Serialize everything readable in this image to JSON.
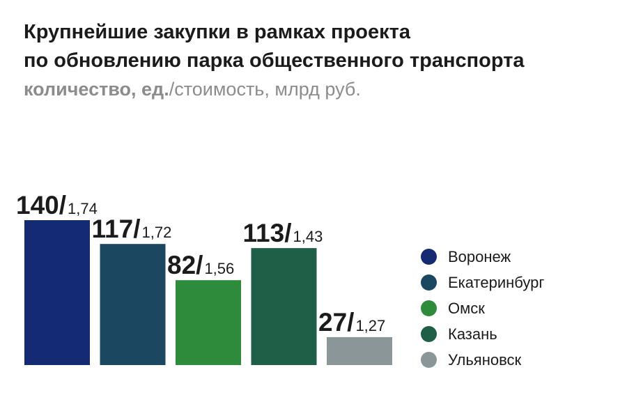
{
  "title_line1": "Крупнейшие закупки в рамках проекта",
  "title_line2": "по обновлению парка общественного транспорта",
  "subtitle_strong": "количество, ед.",
  "subtitle_rest": "/стоимость, млрд руб.",
  "chart_data": {
    "type": "bar",
    "categories": [
      "Воронеж",
      "Екатеринбург",
      "Омск",
      "Казань",
      "Ульяновск"
    ],
    "series": [
      {
        "name": "количество, ед.",
        "values": [
          140,
          117,
          82,
          113,
          27
        ]
      },
      {
        "name": "стоимость, млрд руб.",
        "values": [
          1.74,
          1.72,
          1.56,
          1.43,
          1.27
        ]
      }
    ],
    "value_labels": [
      {
        "count": "140/",
        "cost": "1,74"
      },
      {
        "count": "117/",
        "cost": "1,72"
      },
      {
        "count": "82/",
        "cost": "1,56"
      },
      {
        "count": "113/",
        "cost": "1,43"
      },
      {
        "count": "27/",
        "cost": "1,27"
      }
    ],
    "colors": [
      "#142a73",
      "#1c4760",
      "#2e8b3c",
      "#1f5f48",
      "#8a9698"
    ],
    "ylim": [
      0,
      140
    ],
    "grid": false,
    "legend_position": "right"
  }
}
